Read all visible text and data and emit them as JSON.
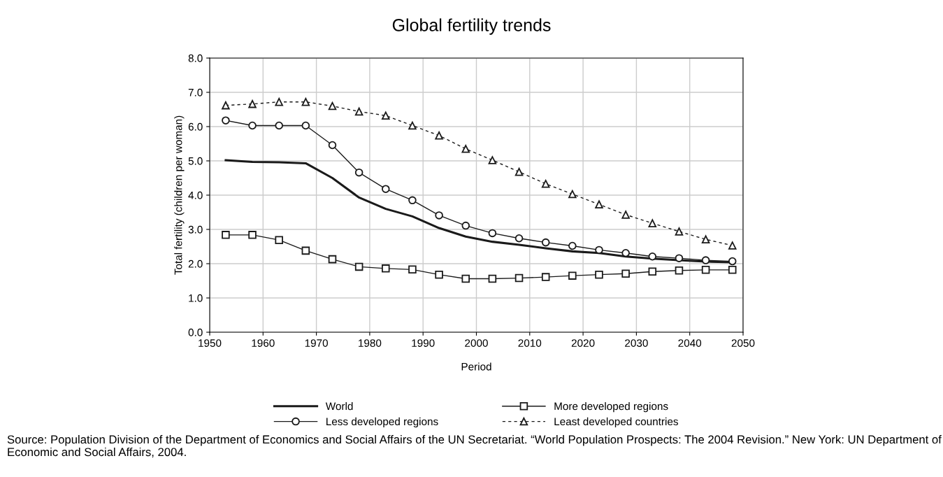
{
  "chart_data": {
    "type": "line",
    "title": "Global fertility trends",
    "xlabel": "Period",
    "ylabel": "Total fertility (children per woman)",
    "x": [
      1953,
      1958,
      1963,
      1968,
      1973,
      1978,
      1983,
      1988,
      1993,
      1998,
      2003,
      2008,
      2013,
      2018,
      2023,
      2028,
      2033,
      2038,
      2043,
      2048
    ],
    "series": [
      {
        "name": "World",
        "color": "#1a1a1a",
        "marker": "none",
        "line_style": "solid",
        "values": [
          5.02,
          4.97,
          4.96,
          4.93,
          4.5,
          3.93,
          3.6,
          3.38,
          3.04,
          2.79,
          2.64,
          2.55,
          2.45,
          2.36,
          2.31,
          2.21,
          2.15,
          2.1,
          2.06,
          2.04
        ]
      },
      {
        "name": "More developed regions",
        "color": "#1a1a1a",
        "marker": "square",
        "line_style": "solid",
        "values": [
          2.84,
          2.84,
          2.69,
          2.38,
          2.13,
          1.91,
          1.86,
          1.83,
          1.68,
          1.56,
          1.56,
          1.58,
          1.61,
          1.65,
          1.68,
          1.71,
          1.77,
          1.8,
          1.82,
          1.82
        ]
      },
      {
        "name": "Less developed regions",
        "color": "#1a1a1a",
        "marker": "circle",
        "line_style": "solid",
        "values": [
          6.18,
          6.03,
          6.03,
          6.03,
          5.46,
          4.66,
          4.18,
          3.85,
          3.41,
          3.11,
          2.89,
          2.74,
          2.62,
          2.52,
          2.4,
          2.31,
          2.21,
          2.16,
          2.1,
          2.07
        ]
      },
      {
        "name": "Least developed countries",
        "color": "#1a1a1a",
        "marker": "triangle",
        "line_style": "dashed",
        "values": [
          6.62,
          6.66,
          6.72,
          6.72,
          6.6,
          6.44,
          6.32,
          6.03,
          5.74,
          5.35,
          5.02,
          4.68,
          4.33,
          4.03,
          3.73,
          3.43,
          3.18,
          2.94,
          2.71,
          2.53
        ]
      }
    ],
    "xlim": [
      1950,
      2050
    ],
    "xticks": [
      1950,
      1960,
      1970,
      1980,
      1990,
      2000,
      2010,
      2020,
      2030,
      2040,
      2050
    ],
    "ylim": [
      0,
      8
    ],
    "yticks": [
      {
        "value": 0,
        "label": "0.0"
      },
      {
        "value": 1,
        "label": "1.0"
      },
      {
        "value": 2,
        "label": "2.0"
      },
      {
        "value": 3,
        "label": "3.0"
      },
      {
        "value": 4,
        "label": "4.0"
      },
      {
        "value": 5,
        "label": "5.0"
      },
      {
        "value": 6,
        "label": "6.0"
      },
      {
        "value": 7,
        "label": "7.0"
      },
      {
        "value": 8,
        "label": "8.0"
      }
    ],
    "grid": true,
    "legend": "bottom",
    "annotations": [
      "Source: Population Division of the Department of Economics and Social Affairs of the UN Secretariat. “World Population Prospects: The 2004 Revision.” New York: UN Department of Economic and Social Affairs, 2004."
    ]
  }
}
